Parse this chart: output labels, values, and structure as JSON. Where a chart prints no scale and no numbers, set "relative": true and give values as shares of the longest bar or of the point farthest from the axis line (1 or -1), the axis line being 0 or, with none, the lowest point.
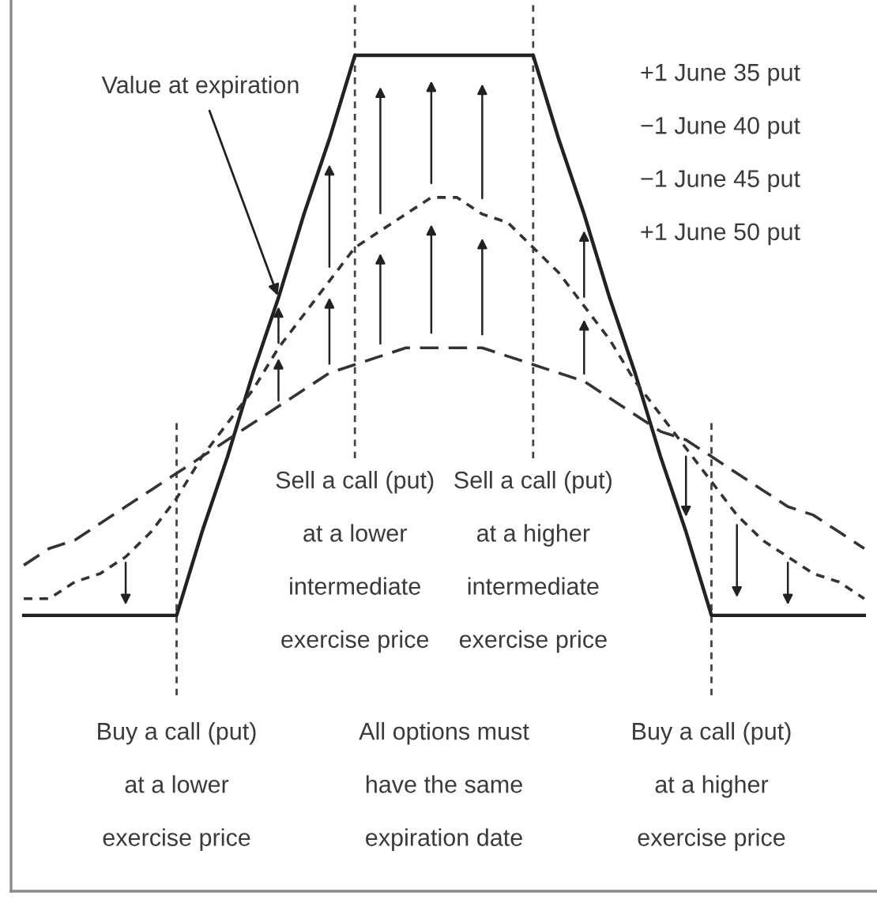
{
  "chart_data": {
    "type": "line",
    "relative": true,
    "categories": [
      null,
      null,
      null,
      null,
      null,
      null,
      null,
      null,
      null,
      null,
      null,
      null,
      null,
      null,
      null,
      null,
      null,
      null,
      null,
      null,
      null,
      null,
      null,
      null,
      null,
      null,
      null,
      null,
      null,
      null,
      null,
      null,
      null,
      null
    ],
    "series": [
      {
        "name": "Value at expiration",
        "color": "#222222",
        "line_style": "solid",
        "values": [
          0.33,
          0.33,
          0.33,
          0.33,
          0.33,
          0.33,
          0.33,
          0.43,
          0.52,
          0.62,
          0.71,
          0.81,
          0.9,
          1,
          1,
          1,
          1,
          1,
          1,
          1,
          1,
          0.9,
          0.81,
          0.71,
          0.62,
          0.52,
          0.43,
          0.33,
          0.33,
          0.33,
          0.33,
          0.33,
          0.33,
          0.33
        ]
      },
      {
        "color": "#333333",
        "line_style": "dotted",
        "values": [
          0.35,
          0.35,
          0.37,
          0.38,
          0.4,
          0.43,
          0.47,
          0.52,
          0.56,
          0.6,
          0.65,
          0.69,
          0.73,
          0.77,
          0.79,
          0.81,
          0.83,
          0.83,
          0.81,
          0.8,
          0.77,
          0.74,
          0.7,
          0.66,
          0.61,
          0.57,
          0.53,
          0.49,
          0.45,
          0.42,
          0.4,
          0.38,
          0.37,
          0.35
        ]
      },
      {
        "color": "#333333",
        "line_style": "dashed",
        "values": [
          0.39,
          0.41,
          0.42,
          0.44,
          0.46,
          0.48,
          0.5,
          0.52,
          0.54,
          0.56,
          0.58,
          0.6,
          0.62,
          0.63,
          0.64,
          0.65,
          0.65,
          0.65,
          0.65,
          0.64,
          0.63,
          0.62,
          0.61,
          0.59,
          0.57,
          0.55,
          0.54,
          0.52,
          0.5,
          0.48,
          0.46,
          0.45,
          0.43,
          0.41
        ]
      }
    ],
    "annotations": [
      "+1 June 35 put\n−1 June 40 put\n−1 June 45 put\n+1 June 50 put",
      "Sell a call (put)\nat a lower\nintermediate\nexercise price",
      "Sell a call (put)\nat a higher\nintermediate\nexercise price",
      "Buy a call (put)\nat a lower\nexercise price",
      "All options must\nhave the same\nexpiration date",
      "Buy a call (put)\nat a higher\nexercise price"
    ]
  }
}
